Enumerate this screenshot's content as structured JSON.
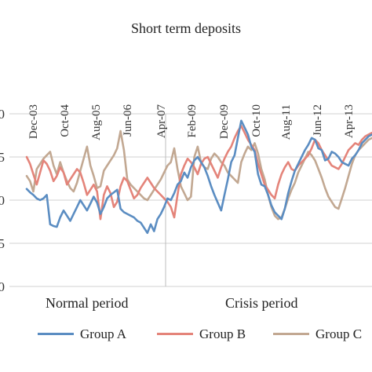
{
  "chart_data": {
    "type": "line",
    "title": "Short term deposits",
    "xlabel": "",
    "ylabel": "",
    "x_tick_labels": [
      "Dec-03",
      "Oct-04",
      "Aug-05",
      "Jun-06",
      "Apr-07",
      "Feb-09",
      "Dec-09",
      "Oct-10",
      "Aug-11",
      "Jun-12",
      "Apr-13"
    ],
    "y_tick_labels": [
      "0",
      "5",
      "0",
      "5",
      "0"
    ],
    "ylim": [
      0,
      2
    ],
    "grid": true,
    "period_labels": [
      "Normal period",
      "Crisis period"
    ],
    "legend_position": "bottom",
    "series": [
      {
        "name": "Group A",
        "color": "#5b8dc2",
        "values": [
          1.13,
          1.09,
          1.06,
          1.02,
          1.0,
          1.02,
          1.06,
          0.72,
          0.7,
          0.69,
          0.8,
          0.88,
          0.82,
          0.76,
          0.84,
          0.92,
          1.0,
          0.94,
          0.88,
          0.96,
          1.04,
          0.97,
          0.84,
          0.92,
          1.02,
          1.06,
          1.09,
          1.12,
          0.9,
          0.86,
          0.84,
          0.82,
          0.8,
          0.76,
          0.74,
          0.68,
          0.62,
          0.72,
          0.64,
          0.78,
          0.84,
          0.92,
          1.02,
          1.0,
          1.08,
          1.18,
          1.22,
          1.32,
          1.26,
          1.38,
          1.46,
          1.5,
          1.44,
          1.38,
          1.28,
          1.16,
          1.06,
          0.97,
          0.88,
          1.06,
          1.24,
          1.44,
          1.52,
          1.72,
          1.92,
          1.84,
          1.76,
          1.62,
          1.56,
          1.3,
          1.18,
          1.16,
          1.06,
          0.94,
          0.86,
          0.82,
          0.78,
          0.9,
          1.08,
          1.22,
          1.34,
          1.42,
          1.5,
          1.58,
          1.64,
          1.72,
          1.7,
          1.6,
          1.58,
          1.46,
          1.48,
          1.56,
          1.54,
          1.5,
          1.44,
          1.42,
          1.4,
          1.48,
          1.52,
          1.58,
          1.66,
          1.7,
          1.74,
          1.76
        ]
      },
      {
        "name": "Group B",
        "color": "#e4847a",
        "values": [
          1.5,
          1.42,
          1.3,
          1.18,
          1.32,
          1.46,
          1.42,
          1.34,
          1.22,
          1.28,
          1.38,
          1.32,
          1.18,
          1.24,
          1.3,
          1.36,
          1.32,
          1.2,
          1.06,
          1.12,
          1.18,
          1.1,
          0.78,
          1.06,
          1.16,
          1.08,
          0.92,
          0.98,
          1.16,
          1.26,
          1.22,
          1.12,
          1.02,
          1.06,
          1.14,
          1.2,
          1.26,
          1.2,
          1.14,
          1.1,
          1.06,
          1.02,
          0.98,
          0.92,
          0.8,
          1.06,
          1.3,
          1.4,
          1.48,
          1.44,
          1.38,
          1.3,
          1.42,
          1.48,
          1.5,
          1.42,
          1.34,
          1.26,
          1.38,
          1.48,
          1.56,
          1.62,
          1.72,
          1.8,
          1.86,
          1.78,
          1.7,
          1.64,
          1.58,
          1.42,
          1.3,
          1.18,
          1.12,
          1.06,
          1.02,
          1.18,
          1.3,
          1.38,
          1.44,
          1.36,
          1.34,
          1.4,
          1.44,
          1.48,
          1.52,
          1.6,
          1.7,
          1.66,
          1.58,
          1.52,
          1.46,
          1.4,
          1.38,
          1.36,
          1.42,
          1.5,
          1.58,
          1.62,
          1.66,
          1.64,
          1.7,
          1.74,
          1.76,
          1.78
        ]
      },
      {
        "name": "Group C",
        "color": "#c2a892",
        "values": [
          1.28,
          1.22,
          1.1,
          1.36,
          1.42,
          1.48,
          1.52,
          1.56,
          1.4,
          1.3,
          1.44,
          1.32,
          1.22,
          1.14,
          1.1,
          1.2,
          1.34,
          1.48,
          1.62,
          1.4,
          1.28,
          1.14,
          1.16,
          1.34,
          1.4,
          1.46,
          1.52,
          1.6,
          1.8,
          1.58,
          1.24,
          1.18,
          1.14,
          1.1,
          1.06,
          1.02,
          1.0,
          1.06,
          1.12,
          1.18,
          1.24,
          1.32,
          1.4,
          1.44,
          1.6,
          1.36,
          1.16,
          1.08,
          1.0,
          1.04,
          1.5,
          1.62,
          1.44,
          1.38,
          1.36,
          1.48,
          1.54,
          1.5,
          1.44,
          1.4,
          1.32,
          1.28,
          1.24,
          1.2,
          1.44,
          1.54,
          1.62,
          1.58,
          1.66,
          1.54,
          1.36,
          1.24,
          1.06,
          0.92,
          0.82,
          0.78,
          0.8,
          0.9,
          1.02,
          1.12,
          1.2,
          1.32,
          1.4,
          1.48,
          1.56,
          1.52,
          1.46,
          1.36,
          1.26,
          1.14,
          1.04,
          0.98,
          0.92,
          0.9,
          1.02,
          1.14,
          1.28,
          1.42,
          1.52,
          1.58,
          1.62,
          1.66,
          1.7,
          1.72
        ]
      }
    ]
  }
}
